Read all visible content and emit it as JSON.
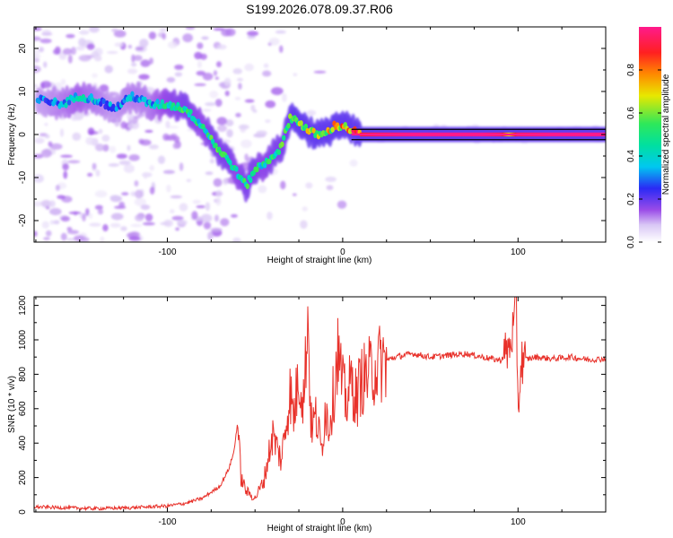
{
  "chart_data": [
    {
      "type": "heatmap",
      "title": "S199.2026.078.09.37.R06",
      "xlabel": "Height of straight line (km)",
      "ylabel": "Frequency (Hz)",
      "xlim": [
        -176,
        150
      ],
      "ylim": [
        -25,
        25
      ],
      "xticks": [
        -100,
        0,
        100
      ],
      "yticks": [
        -20,
        -10,
        0,
        10,
        20
      ],
      "colorbar": {
        "label": "Normalized spectral amplitude",
        "range": [
          0,
          1
        ],
        "ticks": [
          "0.0",
          "0.2",
          "0.4",
          "0.6",
          "0.8"
        ],
        "colormap": [
          "#ffffff",
          "#c9b3f0",
          "#7a1fe0",
          "#2a2af5",
          "#00c8f0",
          "#2ee85a",
          "#e8e800",
          "#ff8a00",
          "#ff2020",
          "#ff1a8c"
        ]
      },
      "ridge": {
        "x": [
          -170,
          -160,
          -150,
          -140,
          -130,
          -120,
          -110,
          -100,
          -90,
          -80,
          -75,
          -70,
          -65,
          -60,
          -55,
          -50,
          -45,
          -40,
          -35,
          -30,
          -25,
          -20,
          -15,
          -10,
          -5,
          0,
          5,
          10,
          20,
          40,
          60,
          80,
          90,
          95,
          100,
          120,
          150
        ],
        "y": [
          8,
          7,
          9,
          8,
          6,
          9,
          7,
          7,
          6,
          2,
          -1,
          -4,
          -6,
          -9,
          -12,
          -8,
          -7,
          -5,
          -3,
          4,
          3,
          1,
          0,
          0,
          2,
          2,
          1,
          0,
          0,
          0,
          0,
          0,
          0,
          0,
          0,
          0,
          0
        ],
        "amplitude": [
          0.3,
          0.35,
          0.4,
          0.35,
          0.3,
          0.35,
          0.35,
          0.45,
          0.5,
          0.45,
          0.5,
          0.5,
          0.5,
          0.45,
          0.5,
          0.5,
          0.45,
          0.5,
          0.5,
          0.55,
          0.6,
          0.65,
          0.65,
          0.7,
          0.7,
          0.75,
          0.8,
          0.9,
          0.95,
          1.0,
          1.0,
          1.0,
          0.95,
          0.7,
          0.95,
          1.0,
          1.0
        ]
      }
    },
    {
      "type": "line",
      "xlabel": "Height of straight line (km)",
      "ylabel": "SNR (10 * v/v)",
      "xlim": [
        -176,
        150
      ],
      "ylim": [
        0,
        1250
      ],
      "xticks": [
        -100,
        0,
        100
      ],
      "yticks": [
        0,
        200,
        400,
        600,
        800,
        1000,
        1200
      ],
      "color": "#e8312a",
      "series": [
        {
          "x": [
            -176,
            -160,
            -140,
            -120,
            -100,
            -90,
            -80,
            -70,
            -65,
            -62,
            -60,
            -58,
            -55,
            -50,
            -45,
            -40,
            -35,
            -30,
            -28,
            -25,
            -22,
            -20,
            -18,
            -15,
            -12,
            -10,
            -8,
            -5,
            -3,
            0,
            2,
            5,
            8,
            10,
            15,
            20,
            25,
            30,
            40,
            50,
            60,
            70,
            80,
            90,
            95,
            98,
            99,
            100,
            102,
            110,
            120,
            130,
            140,
            150
          ],
          "y": [
            30,
            25,
            20,
            25,
            35,
            50,
            80,
            150,
            250,
            350,
            520,
            200,
            120,
            80,
            180,
            450,
            300,
            700,
            550,
            800,
            650,
            1180,
            500,
            550,
            350,
            620,
            500,
            700,
            950,
            720,
            640,
            760,
            650,
            760,
            800,
            860,
            880,
            900,
            920,
            900,
            910,
            920,
            900,
            880,
            950,
            1100,
            1240,
            600,
            880,
            900,
            890,
            900,
            885,
            890
          ]
        }
      ]
    }
  ]
}
